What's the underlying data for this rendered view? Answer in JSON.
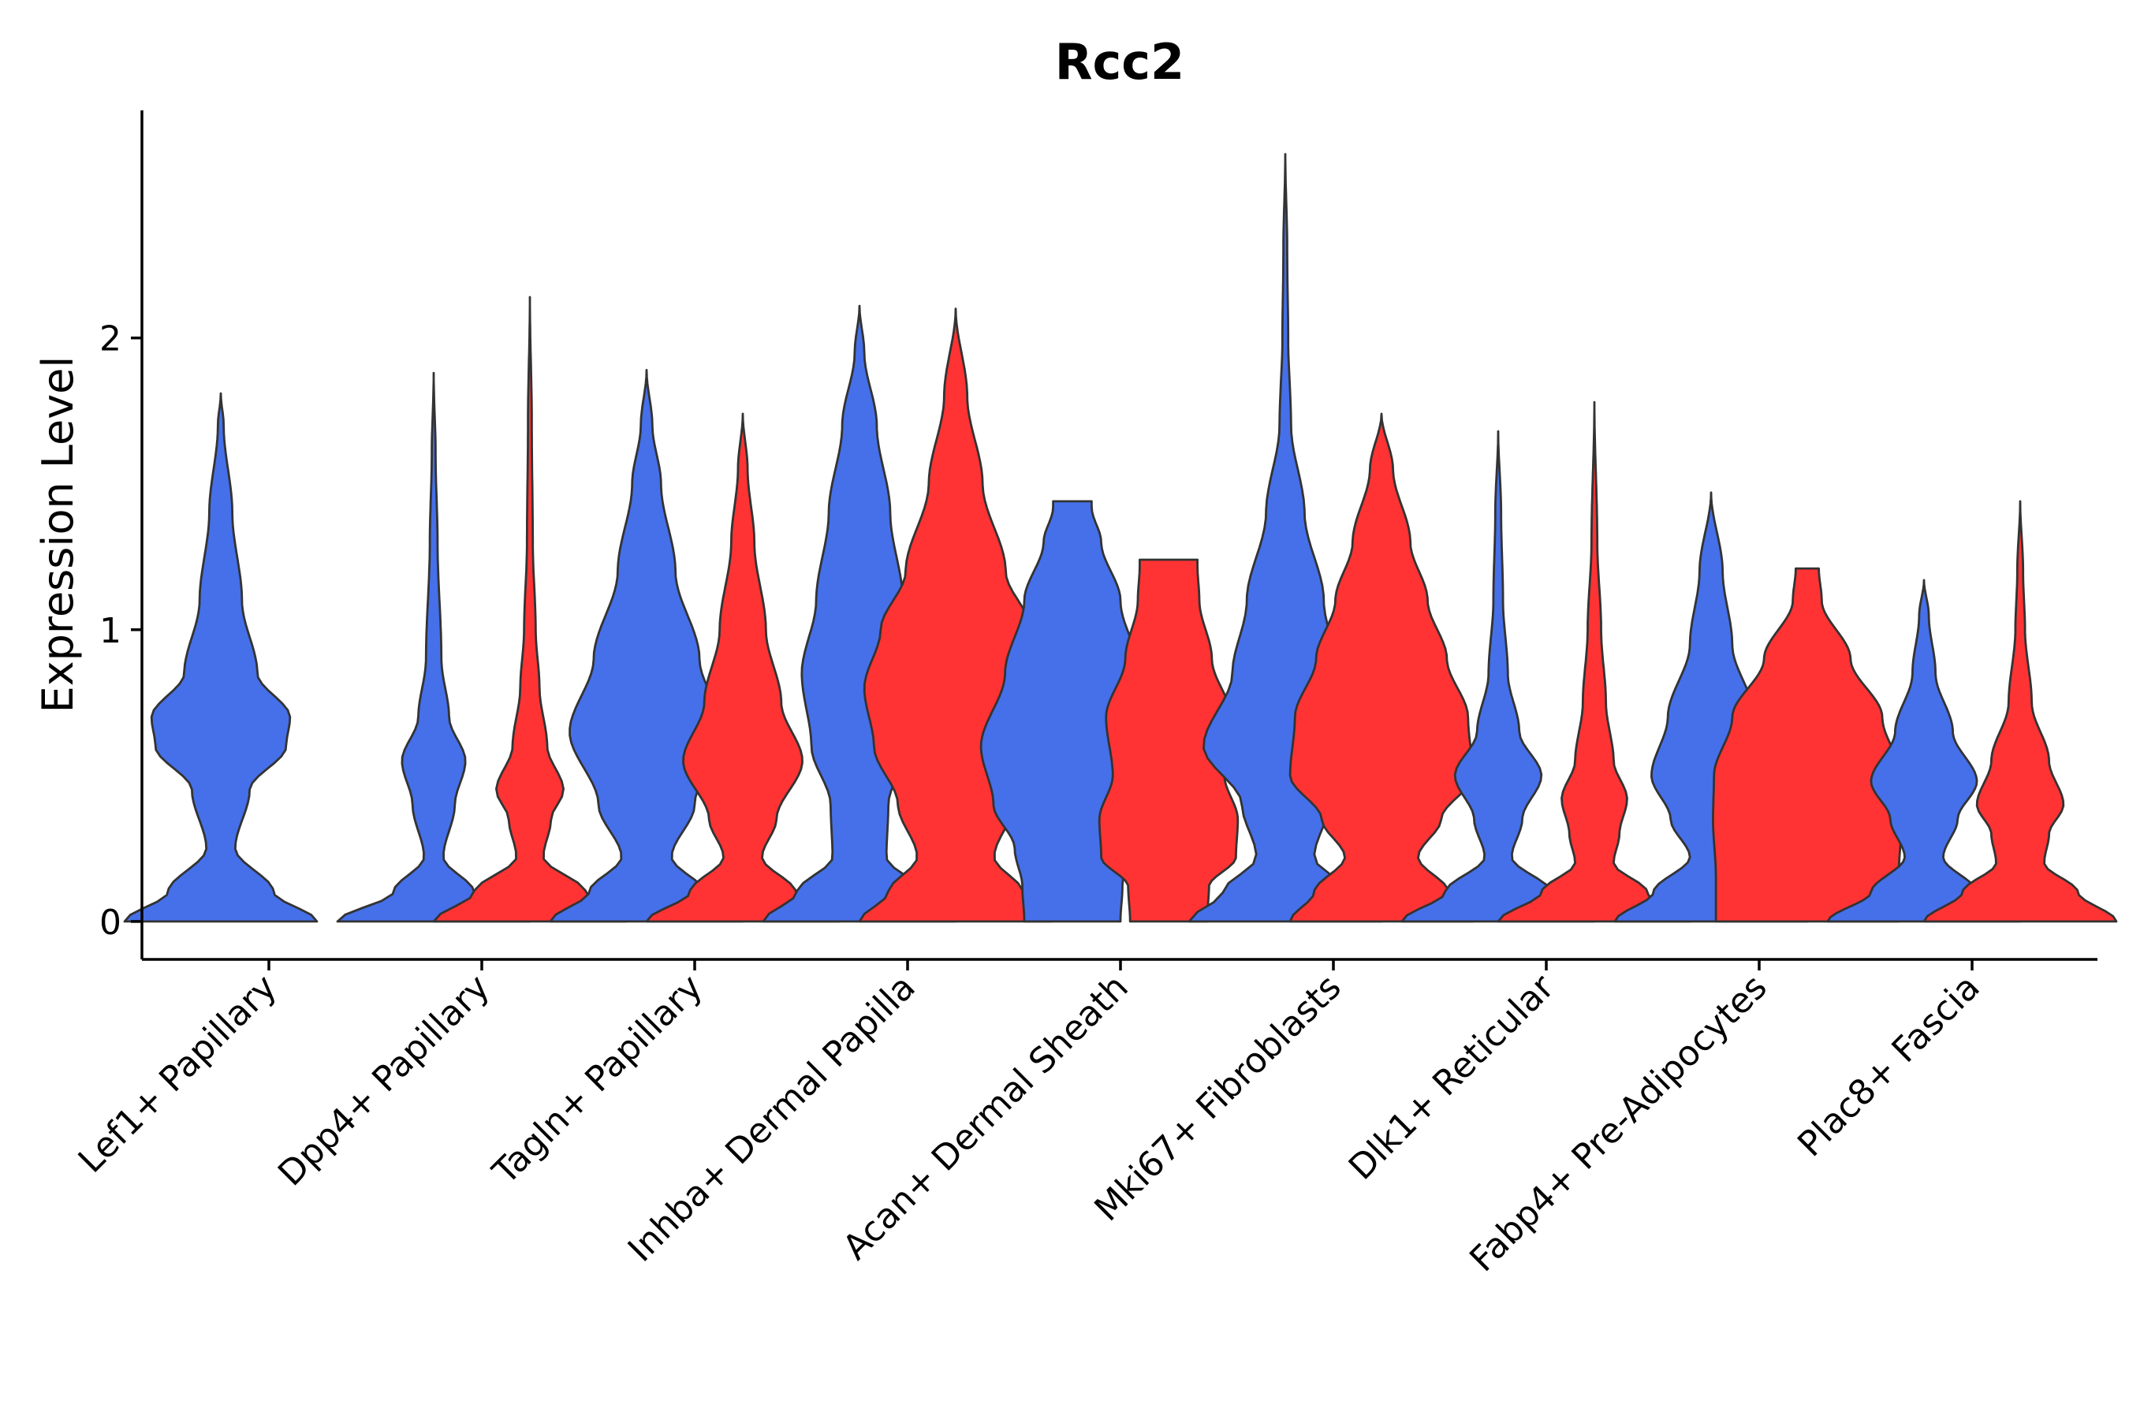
{
  "chart_data": {
    "type": "violin",
    "title": "Rcc2",
    "xlabel": "",
    "ylabel": "Expression Level",
    "ylim": [
      -0.13,
      2.78
    ],
    "yticks": [
      0,
      1,
      2
    ],
    "grid": false,
    "legend": "none",
    "colors": {
      "group_a": "#4570EA",
      "group_b": "#FF3333",
      "outline": "#333333"
    },
    "categories": [
      "Lef1+ Papillary",
      "Dpp4+ Papillary",
      "Tagln+ Papillary",
      "Inhba+ Dermal Papilla",
      "Acan+ Dermal Sheath",
      "Mki67+ Fibroblasts",
      "Dlk1+ Reticular",
      "Fabp4+ Pre-Adipocytes",
      "Plac8+ Fascia"
    ],
    "violins": [
      {
        "category": 0,
        "group": "group_a",
        "max": 1.81,
        "profile": [
          [
            0,
            1.0
          ],
          [
            0.1,
            0.55
          ],
          [
            0.25,
            0.15
          ],
          [
            0.45,
            0.3
          ],
          [
            0.6,
            0.68
          ],
          [
            0.7,
            0.72
          ],
          [
            0.85,
            0.38
          ],
          [
            1.1,
            0.22
          ],
          [
            1.4,
            0.12
          ],
          [
            1.7,
            0.03
          ],
          [
            1.81,
            0
          ]
        ]
      },
      {
        "category": 1,
        "group": "group_a",
        "max": 1.88,
        "profile": [
          [
            0,
            1.0
          ],
          [
            0.1,
            0.42
          ],
          [
            0.22,
            0.1
          ],
          [
            0.4,
            0.22
          ],
          [
            0.55,
            0.33
          ],
          [
            0.7,
            0.16
          ],
          [
            0.9,
            0.08
          ],
          [
            1.3,
            0.04
          ],
          [
            1.6,
            0.02
          ],
          [
            1.88,
            0
          ]
        ]
      },
      {
        "category": 1,
        "group": "group_b",
        "max": 2.14,
        "profile": [
          [
            0,
            1.0
          ],
          [
            0.1,
            0.58
          ],
          [
            0.22,
            0.14
          ],
          [
            0.35,
            0.22
          ],
          [
            0.45,
            0.35
          ],
          [
            0.6,
            0.18
          ],
          [
            0.8,
            0.1
          ],
          [
            1.0,
            0.06
          ],
          [
            1.3,
            0.03
          ],
          [
            1.7,
            0.02
          ],
          [
            2.14,
            0
          ]
        ]
      },
      {
        "category": 2,
        "group": "group_a",
        "max": 1.89,
        "profile": [
          [
            0,
            1.0
          ],
          [
            0.1,
            0.6
          ],
          [
            0.22,
            0.26
          ],
          [
            0.4,
            0.5
          ],
          [
            0.65,
            0.8
          ],
          [
            0.9,
            0.55
          ],
          [
            1.2,
            0.3
          ],
          [
            1.5,
            0.15
          ],
          [
            1.7,
            0.06
          ],
          [
            1.89,
            0
          ]
        ]
      },
      {
        "category": 2,
        "group": "group_b",
        "max": 1.74,
        "profile": [
          [
            0,
            1.0
          ],
          [
            0.1,
            0.55
          ],
          [
            0.22,
            0.2
          ],
          [
            0.35,
            0.35
          ],
          [
            0.55,
            0.62
          ],
          [
            0.75,
            0.4
          ],
          [
            1.0,
            0.24
          ],
          [
            1.3,
            0.12
          ],
          [
            1.55,
            0.05
          ],
          [
            1.74,
            0
          ]
        ]
      },
      {
        "category": 3,
        "group": "group_a",
        "max": 2.11,
        "profile": [
          [
            0,
            1.0
          ],
          [
            0.1,
            0.65
          ],
          [
            0.22,
            0.28
          ],
          [
            0.4,
            0.3
          ],
          [
            0.6,
            0.5
          ],
          [
            0.85,
            0.6
          ],
          [
            1.1,
            0.45
          ],
          [
            1.4,
            0.32
          ],
          [
            1.7,
            0.18
          ],
          [
            1.95,
            0.05
          ],
          [
            2.11,
            0
          ]
        ]
      },
      {
        "category": 3,
        "group": "group_b",
        "max": 2.1,
        "profile": [
          [
            0,
            1.0
          ],
          [
            0.1,
            0.7
          ],
          [
            0.22,
            0.4
          ],
          [
            0.4,
            0.6
          ],
          [
            0.6,
            0.85
          ],
          [
            0.8,
            0.95
          ],
          [
            1.0,
            0.78
          ],
          [
            1.2,
            0.52
          ],
          [
            1.5,
            0.28
          ],
          [
            1.8,
            0.12
          ],
          [
            2.1,
            0
          ]
        ]
      },
      {
        "category": 4,
        "group": "group_a",
        "max": 1.44,
        "profile": [
          [
            0,
            0.5
          ],
          [
            0.12,
            0.52
          ],
          [
            0.25,
            0.6
          ],
          [
            0.4,
            0.82
          ],
          [
            0.6,
            0.95
          ],
          [
            0.85,
            0.7
          ],
          [
            1.1,
            0.5
          ],
          [
            1.3,
            0.3
          ],
          [
            1.42,
            0.2
          ],
          [
            1.44,
            0.2
          ]
        ]
      },
      {
        "category": 4,
        "group": "group_b",
        "max": 1.24,
        "profile": [
          [
            0,
            0.4
          ],
          [
            0.12,
            0.42
          ],
          [
            0.22,
            0.7
          ],
          [
            0.35,
            0.72
          ],
          [
            0.5,
            0.58
          ],
          [
            0.7,
            0.65
          ],
          [
            0.9,
            0.45
          ],
          [
            1.1,
            0.32
          ],
          [
            1.22,
            0.3
          ],
          [
            1.24,
            0.3
          ]
        ]
      },
      {
        "category": 5,
        "group": "group_a",
        "max": 2.63,
        "profile": [
          [
            0,
            1.0
          ],
          [
            0.1,
            0.65
          ],
          [
            0.22,
            0.3
          ],
          [
            0.4,
            0.45
          ],
          [
            0.6,
            0.85
          ],
          [
            0.85,
            0.55
          ],
          [
            1.1,
            0.4
          ],
          [
            1.4,
            0.2
          ],
          [
            1.7,
            0.06
          ],
          [
            2.0,
            0.03
          ],
          [
            2.3,
            0.02
          ],
          [
            2.63,
            0
          ]
        ]
      },
      {
        "category": 5,
        "group": "group_b",
        "max": 1.74,
        "profile": [
          [
            0,
            0.95
          ],
          [
            0.1,
            0.7
          ],
          [
            0.22,
            0.38
          ],
          [
            0.35,
            0.62
          ],
          [
            0.5,
            0.95
          ],
          [
            0.7,
            0.9
          ],
          [
            0.9,
            0.68
          ],
          [
            1.1,
            0.48
          ],
          [
            1.3,
            0.3
          ],
          [
            1.55,
            0.12
          ],
          [
            1.74,
            0
          ]
        ]
      },
      {
        "category": 6,
        "group": "group_a",
        "max": 1.68,
        "profile": [
          [
            0,
            1.0
          ],
          [
            0.1,
            0.55
          ],
          [
            0.22,
            0.14
          ],
          [
            0.35,
            0.25
          ],
          [
            0.5,
            0.45
          ],
          [
            0.65,
            0.22
          ],
          [
            0.85,
            0.1
          ],
          [
            1.1,
            0.05
          ],
          [
            1.4,
            0.03
          ],
          [
            1.68,
            0
          ]
        ]
      },
      {
        "category": 6,
        "group": "group_b",
        "max": 1.78,
        "profile": [
          [
            0,
            1.0
          ],
          [
            0.1,
            0.55
          ],
          [
            0.2,
            0.2
          ],
          [
            0.3,
            0.26
          ],
          [
            0.42,
            0.34
          ],
          [
            0.55,
            0.2
          ],
          [
            0.75,
            0.12
          ],
          [
            1.0,
            0.07
          ],
          [
            1.3,
            0.03
          ],
          [
            1.78,
            0
          ]
        ]
      },
      {
        "category": 7,
        "group": "group_a",
        "max": 1.47,
        "profile": [
          [
            0,
            1.0
          ],
          [
            0.1,
            0.6
          ],
          [
            0.22,
            0.22
          ],
          [
            0.35,
            0.42
          ],
          [
            0.5,
            0.62
          ],
          [
            0.7,
            0.45
          ],
          [
            0.95,
            0.22
          ],
          [
            1.2,
            0.12
          ],
          [
            1.47,
            0
          ]
        ]
      },
      {
        "category": 7,
        "group": "group_b",
        "max": 1.21,
        "profile": [
          [
            0,
            0.95
          ],
          [
            0.15,
            0.95
          ],
          [
            0.35,
            0.98
          ],
          [
            0.5,
            0.97
          ],
          [
            0.7,
            0.78
          ],
          [
            0.9,
            0.45
          ],
          [
            1.1,
            0.15
          ],
          [
            1.21,
            0.12
          ]
        ]
      },
      {
        "category": 8,
        "group": "group_a",
        "max": 1.17,
        "profile": [
          [
            0,
            1.0
          ],
          [
            0.1,
            0.55
          ],
          [
            0.22,
            0.2
          ],
          [
            0.35,
            0.35
          ],
          [
            0.48,
            0.55
          ],
          [
            0.65,
            0.3
          ],
          [
            0.85,
            0.12
          ],
          [
            1.05,
            0.05
          ],
          [
            1.17,
            0
          ]
        ]
      },
      {
        "category": 8,
        "group": "group_b",
        "max": 1.44,
        "profile": [
          [
            0,
            1.0
          ],
          [
            0.1,
            0.6
          ],
          [
            0.2,
            0.25
          ],
          [
            0.3,
            0.3
          ],
          [
            0.4,
            0.45
          ],
          [
            0.55,
            0.3
          ],
          [
            0.75,
            0.12
          ],
          [
            1.0,
            0.05
          ],
          [
            1.2,
            0.03
          ],
          [
            1.44,
            0
          ]
        ]
      }
    ]
  }
}
